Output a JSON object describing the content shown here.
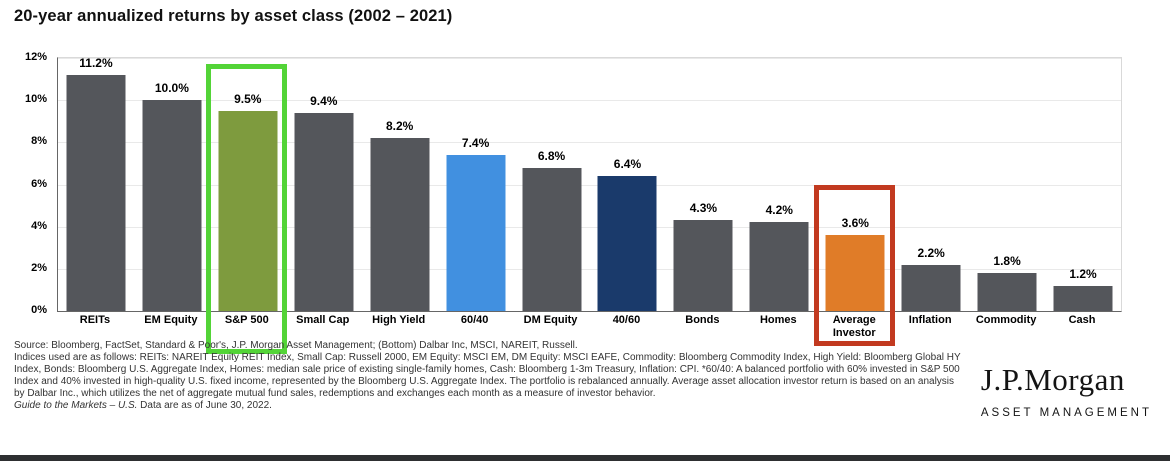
{
  "chart_data": {
    "type": "bar",
    "title": "20-year annualized returns by asset class (2002 – 2021)",
    "categories": [
      "REITs",
      "EM Equity",
      "S&P 500",
      "Small Cap",
      "High Yield",
      "60/40",
      "DM Equity",
      "40/60",
      "Bonds",
      "Homes",
      "Average Investor",
      "Inflation",
      "Commodity",
      "Cash"
    ],
    "values": [
      11.2,
      10.0,
      9.5,
      9.4,
      8.2,
      7.4,
      6.8,
      6.4,
      4.3,
      4.2,
      3.6,
      2.2,
      1.8,
      1.2
    ],
    "value_labels": [
      "11.2%",
      "10.0%",
      "9.5%",
      "9.4%",
      "8.2%",
      "7.4%",
      "6.8%",
      "6.4%",
      "4.3%",
      "4.2%",
      "3.6%",
      "2.2%",
      "1.8%",
      "1.2%"
    ],
    "bar_colors": [
      "#54565b",
      "#54565b",
      "#7e9b3e",
      "#54565b",
      "#54565b",
      "#4190e0",
      "#54565b",
      "#1a3a6b",
      "#54565b",
      "#54565b",
      "#e07c28",
      "#54565b",
      "#54565b",
      "#54565b"
    ],
    "ylim": [
      0,
      12
    ],
    "ytick_values": [
      0,
      2,
      4,
      6,
      8,
      10,
      12
    ],
    "ytick_labels": [
      "0%",
      "2%",
      "4%",
      "6%",
      "8%",
      "10%",
      "12%"
    ],
    "grid": true,
    "legend": "none",
    "highlights": [
      {
        "category": "S&P 500",
        "box_color": "#53d437"
      },
      {
        "category": "Average Investor",
        "box_color": "#c23a20"
      }
    ]
  },
  "footer": {
    "source_line": "Source: Bloomberg, FactSet, Standard & Poor's, J.P. Morgan Asset Management; (Bottom) Dalbar Inc, MSCI, NAREIT, Russell.",
    "notes": "Indices used are as follows: REITs: NAREIT Equity REIT Index, Small Cap: Russell 2000, EM Equity: MSCI EM, DM Equity: MSCI EAFE, Commodity: Bloomberg Commodity Index, High Yield: Bloomberg Global HY Index, Bonds: Bloomberg U.S. Aggregate Index, Homes: median sale price of existing single-family homes, Cash: Bloomberg 1-3m Treasury, Inflation: CPI. *60/40: A balanced portfolio with 60% invested in S&P 500 Index and 40% invested in high-quality U.S. fixed income, represented by the Bloomberg U.S. Aggregate Index. The portfolio is rebalanced annually. Average asset allocation investor return is based on an analysis by Dalbar Inc., which utilizes the net of aggregate mutual fund sales, redemptions and exchanges each month as a measure of investor behavior.",
    "guide_italic": "Guide to the Markets – U.S.",
    "guide_rest": " Data are as of June 30, 2022."
  },
  "brand": {
    "name": "J.P.Morgan",
    "subtitle": "ASSET MANAGEMENT"
  }
}
